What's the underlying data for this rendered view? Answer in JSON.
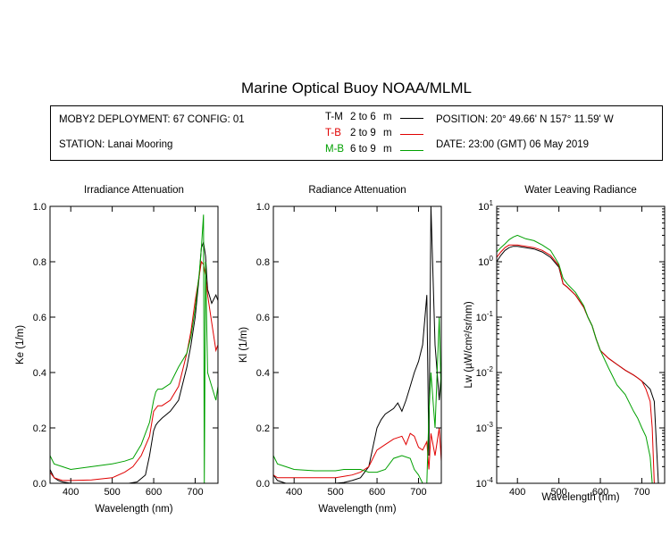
{
  "title": "Marine Optical Buoy NOAA/MLML",
  "info": {
    "deployment": "MOBY2 DEPLOYMENT: 67 CONFIG: 01",
    "station": "STATION: Lanai Mooring",
    "position": "POSITION: 20° 49.66' N   157° 11.59' W",
    "date": "DATE: 23:00 (GMT) 06 May 2019"
  },
  "legend": [
    {
      "code": "T-M",
      "range": "2 to 6",
      "unit": "m",
      "color": "#000000"
    },
    {
      "code": "T-B",
      "range": "2 to 9",
      "unit": "m",
      "color": "#e00000"
    },
    {
      "code": "M-B",
      "range": "6 to 9",
      "unit": "m",
      "color": "#00a000"
    }
  ],
  "chart_data": [
    {
      "type": "line",
      "title": "Irradiance Attenuation",
      "xlabel": "Wavelength (nm)",
      "ylabel": "Ke  (1/m)",
      "xlim": [
        350,
        755
      ],
      "ylim": [
        0,
        1.0
      ],
      "xticks": [
        400,
        500,
        600,
        700
      ],
      "yticks": [
        0.0,
        0.2,
        0.4,
        0.6,
        0.8,
        1.0
      ],
      "ytick_labels": [
        "0.0",
        "0.2",
        "0.4",
        "0.6",
        "0.8",
        "1.0"
      ],
      "series": [
        {
          "name": "T-M",
          "color": "#000000",
          "x": [
            350,
            360,
            370,
            380,
            400,
            450,
            500,
            540,
            560,
            580,
            590,
            600,
            605,
            610,
            620,
            640,
            660,
            680,
            690,
            700,
            710,
            715,
            720,
            725,
            730,
            740,
            750,
            755
          ],
          "y": [
            0.05,
            0.02,
            0.01,
            0.005,
            0.0,
            0.0,
            0.0,
            0.0,
            0.005,
            0.03,
            0.1,
            0.19,
            0.21,
            0.22,
            0.235,
            0.26,
            0.3,
            0.42,
            0.5,
            0.6,
            0.75,
            0.85,
            0.87,
            0.82,
            0.7,
            0.65,
            0.68,
            0.66
          ]
        },
        {
          "name": "T-B",
          "color": "#e00000",
          "x": [
            350,
            360,
            380,
            400,
            450,
            500,
            530,
            550,
            570,
            590,
            600,
            610,
            620,
            640,
            660,
            680,
            690,
            700,
            710,
            715,
            720,
            725,
            730,
            740,
            750,
            755
          ],
          "y": [
            0.04,
            0.02,
            0.01,
            0.01,
            0.012,
            0.02,
            0.04,
            0.06,
            0.1,
            0.17,
            0.26,
            0.28,
            0.28,
            0.3,
            0.35,
            0.47,
            0.55,
            0.66,
            0.75,
            0.8,
            0.79,
            0.75,
            0.68,
            0.58,
            0.48,
            0.5
          ]
        },
        {
          "name": "M-B",
          "color": "#00a000",
          "x": [
            350,
            360,
            380,
            400,
            450,
            500,
            530,
            550,
            570,
            590,
            600,
            605,
            610,
            620,
            640,
            660,
            680,
            690,
            700,
            710,
            715,
            720,
            722,
            725,
            730,
            740,
            750,
            755
          ],
          "y": [
            0.1,
            0.07,
            0.06,
            0.05,
            0.06,
            0.07,
            0.08,
            0.09,
            0.14,
            0.22,
            0.3,
            0.33,
            0.34,
            0.34,
            0.36,
            0.42,
            0.47,
            0.53,
            0.63,
            0.76,
            0.85,
            0.97,
            0.0,
            0.8,
            0.4,
            0.35,
            0.3,
            0.35
          ]
        }
      ]
    },
    {
      "type": "line",
      "title": "Radiance Attenuation",
      "xlabel": "Wavelength (nm)",
      "ylabel": "Kl  (1/m)",
      "xlim": [
        350,
        755
      ],
      "ylim": [
        0,
        1.0
      ],
      "xticks": [
        400,
        500,
        600,
        700
      ],
      "yticks": [
        0.0,
        0.2,
        0.4,
        0.6,
        0.8,
        1.0
      ],
      "ytick_labels": [
        "0.0",
        "0.2",
        "0.4",
        "0.6",
        "0.8",
        "1.0"
      ],
      "series": [
        {
          "name": "T-M",
          "color": "#000000",
          "x": [
            350,
            360,
            380,
            400,
            450,
            500,
            520,
            540,
            560,
            580,
            590,
            600,
            610,
            620,
            640,
            650,
            660,
            670,
            680,
            690,
            700,
            710,
            720,
            725,
            730,
            740,
            750,
            755
          ],
          "y": [
            0.03,
            0.01,
            0.0,
            0.0,
            0.0,
            0.0,
            0.003,
            0.01,
            0.02,
            0.06,
            0.13,
            0.2,
            0.23,
            0.25,
            0.27,
            0.29,
            0.26,
            0.3,
            0.35,
            0.4,
            0.44,
            0.5,
            0.68,
            0.1,
            1.0,
            0.5,
            0.3,
            0.4
          ]
        },
        {
          "name": "T-B",
          "color": "#e00000",
          "x": [
            350,
            360,
            380,
            400,
            450,
            500,
            520,
            540,
            560,
            580,
            600,
            620,
            640,
            660,
            670,
            680,
            690,
            700,
            710,
            720,
            725,
            730,
            740,
            750,
            755
          ],
          "y": [
            0.03,
            0.02,
            0.02,
            0.02,
            0.02,
            0.02,
            0.025,
            0.03,
            0.04,
            0.06,
            0.12,
            0.14,
            0.16,
            0.17,
            0.14,
            0.18,
            0.17,
            0.13,
            0.12,
            0.15,
            0.05,
            0.18,
            0.1,
            0.2,
            0.08
          ]
        },
        {
          "name": "M-B",
          "color": "#00a000",
          "x": [
            350,
            360,
            380,
            400,
            450,
            500,
            520,
            540,
            560,
            580,
            600,
            620,
            640,
            660,
            680,
            690,
            700,
            710,
            720,
            725,
            730,
            740,
            750,
            755
          ],
          "y": [
            0.1,
            0.07,
            0.06,
            0.05,
            0.045,
            0.045,
            0.05,
            0.05,
            0.05,
            0.04,
            0.04,
            0.05,
            0.09,
            0.1,
            0.09,
            0.05,
            0.03,
            0.0,
            0.0,
            0.25,
            0.4,
            0.2,
            0.6,
            0.3
          ]
        }
      ]
    },
    {
      "type": "line",
      "title": "Water Leaving Radiance",
      "xlabel": "Wavelength (nm)",
      "ylabel": "Lw  (µW/cm²/sr/nm)",
      "xscale": "linear",
      "yscale": "log",
      "xlim": [
        350,
        755
      ],
      "ylim": [
        0.0001,
        10
      ],
      "xticks": [
        400,
        500,
        600,
        700
      ],
      "yticks": [
        0.0001,
        0.001,
        0.01,
        0.1,
        1,
        10
      ],
      "ytick_labels": [
        {
          "base": "10",
          "exp": "-4"
        },
        {
          "base": "10",
          "exp": "-3"
        },
        {
          "base": "10",
          "exp": "-2"
        },
        {
          "base": "10",
          "exp": "-1"
        },
        {
          "base": "10",
          "exp": "0"
        },
        {
          "base": "10",
          "exp": "1"
        }
      ],
      "series": [
        {
          "name": "T-M",
          "color": "#000000",
          "x": [
            350,
            360,
            370,
            380,
            390,
            400,
            420,
            440,
            460,
            480,
            500,
            510,
            520,
            540,
            560,
            570,
            580,
            590,
            600,
            620,
            640,
            660,
            680,
            690,
            700,
            710,
            720,
            730,
            740
          ],
          "y": [
            1.0,
            1.3,
            1.6,
            1.8,
            1.9,
            1.9,
            1.8,
            1.7,
            1.5,
            1.2,
            0.8,
            0.4,
            0.35,
            0.25,
            0.15,
            0.1,
            0.07,
            0.04,
            0.025,
            0.018,
            0.014,
            0.011,
            0.009,
            0.008,
            0.007,
            0.006,
            0.005,
            0.003,
            0.0001
          ]
        },
        {
          "name": "T-B",
          "color": "#e00000",
          "x": [
            350,
            360,
            370,
            380,
            390,
            400,
            420,
            440,
            460,
            480,
            500,
            510,
            520,
            540,
            560,
            570,
            580,
            590,
            600,
            620,
            640,
            660,
            680,
            690,
            700,
            710,
            720,
            725,
            730
          ],
          "y": [
            1.2,
            1.5,
            1.8,
            2.0,
            2.0,
            2.0,
            1.9,
            1.8,
            1.6,
            1.3,
            0.85,
            0.4,
            0.35,
            0.25,
            0.15,
            0.1,
            0.07,
            0.04,
            0.025,
            0.018,
            0.014,
            0.011,
            0.009,
            0.008,
            0.007,
            0.005,
            0.003,
            0.001,
            0.0001
          ]
        },
        {
          "name": "M-B",
          "color": "#00a000",
          "x": [
            350,
            360,
            370,
            380,
            390,
            400,
            420,
            440,
            460,
            480,
            500,
            510,
            520,
            540,
            560,
            570,
            580,
            590,
            600,
            620,
            640,
            660,
            680,
            690,
            700,
            710,
            720,
            725
          ],
          "y": [
            1.5,
            1.8,
            2.1,
            2.5,
            2.8,
            3.0,
            2.6,
            2.4,
            2.0,
            1.6,
            0.9,
            0.5,
            0.4,
            0.28,
            0.16,
            0.1,
            0.07,
            0.04,
            0.025,
            0.012,
            0.006,
            0.004,
            0.002,
            0.0015,
            0.001,
            0.0007,
            0.0003,
            0.0001
          ]
        }
      ]
    }
  ]
}
